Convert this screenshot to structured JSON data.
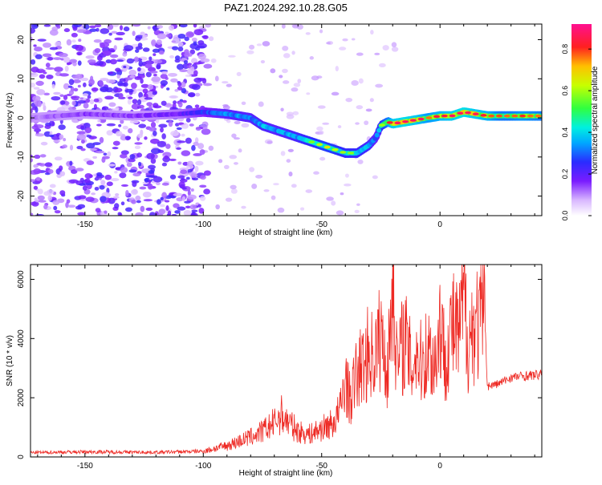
{
  "title": "PAZ1.2024.292.10.28.G05",
  "colors": {
    "snr_line": "#ee2a24",
    "axis": "#000000",
    "background": "#ffffff"
  },
  "colorbar": {
    "label": "Normalized spectral amplitude",
    "ticks": [
      "0.0",
      "0.2",
      "0.4",
      "0.6",
      "0.8"
    ],
    "tick_values": [
      0.0,
      0.2,
      0.4,
      0.6,
      0.8
    ],
    "range": [
      0,
      0.92
    ],
    "colormap": "white-purple-blue-cyan-green-yellow-red-magenta"
  },
  "chart_data": [
    {
      "type": "heatmap",
      "xlabel": "Height of straight line (km)",
      "ylabel": "Frequency (Hz)",
      "xlim": [
        -173,
        43
      ],
      "ylim": [
        -25,
        24
      ],
      "xticks": [
        "-150",
        "-100",
        "-50",
        "0"
      ],
      "xtick_values": [
        -150,
        -100,
        -50,
        0
      ],
      "yticks": [
        "-20",
        "-10",
        "0",
        "10",
        "20"
      ],
      "ytick_values": [
        -20,
        -10,
        0,
        10,
        20
      ],
      "ridge": {
        "x": [
          -173,
          -150,
          -130,
          -110,
          -100,
          -90,
          -80,
          -75,
          -70,
          -60,
          -55,
          -50,
          -45,
          -40,
          -35,
          -30,
          -27,
          -25,
          -22,
          -20,
          -15,
          -10,
          -5,
          0,
          5,
          10,
          15,
          20,
          25,
          30,
          35,
          43
        ],
        "freq": [
          0,
          1,
          0.5,
          1,
          1.5,
          1,
          0,
          -2,
          -3,
          -5,
          -6,
          -7,
          -8,
          -9,
          -9,
          -7,
          -5,
          -2,
          -1,
          -1.5,
          -1,
          -0.5,
          0,
          0.5,
          0.5,
          1.5,
          1,
          0.5,
          0.5,
          0.5,
          0.5,
          0.5
        ],
        "amplitude": [
          0.15,
          0.2,
          0.2,
          0.25,
          0.35,
          0.45,
          0.45,
          0.5,
          0.45,
          0.5,
          0.55,
          0.6,
          0.6,
          0.55,
          0.55,
          0.5,
          0.4,
          0.55,
          0.7,
          0.85,
          0.9,
          0.85,
          0.75,
          0.8,
          0.85,
          0.9,
          0.85,
          0.8,
          0.7,
          0.7,
          0.75,
          0.7
        ]
      },
      "noise_region": {
        "x_range": [
          -173,
          -98
        ],
        "freq_range": [
          -25,
          24
        ],
        "amplitude": 0.12
      }
    },
    {
      "type": "line",
      "xlabel": "Height of straight line (km)",
      "ylabel": "SNR (10 * v/v)",
      "xlim": [
        -173,
        43
      ],
      "ylim": [
        0,
        6500
      ],
      "xticks": [
        "-150",
        "-100",
        "-50",
        "0"
      ],
      "xtick_values": [
        -150,
        -100,
        -50,
        0
      ],
      "yticks": [
        "0",
        "2000",
        "4000",
        "6000"
      ],
      "ytick_values": [
        0,
        2000,
        4000,
        6000
      ],
      "series": [
        {
          "x": [
            -173,
            -150,
            -120,
            -100,
            -95,
            -90,
            -85,
            -80,
            -75,
            -70,
            -67,
            -65,
            -60,
            -55,
            -50,
            -45,
            -42,
            -40,
            -38,
            -35,
            -32,
            -30,
            -28,
            -25,
            -22,
            -20,
            -18,
            -15,
            -12,
            -10,
            -8,
            -5,
            -2,
            0,
            2,
            5,
            8,
            10,
            12,
            15,
            17,
            18,
            19,
            20,
            25,
            30,
            35,
            43
          ],
          "y": [
            150,
            180,
            160,
            200,
            300,
            400,
            550,
            700,
            900,
            1200,
            1500,
            1300,
            900,
            800,
            1000,
            1200,
            1700,
            2800,
            2000,
            3000,
            3300,
            3800,
            3500,
            4300,
            3000,
            6500,
            3200,
            4300,
            3100,
            3800,
            3300,
            3800,
            3300,
            4800,
            3500,
            4600,
            4200,
            5700,
            4100,
            4800,
            4600,
            5200,
            4700,
            2400,
            2500,
            2700,
            2750,
            2800
          ]
        }
      ]
    }
  ]
}
